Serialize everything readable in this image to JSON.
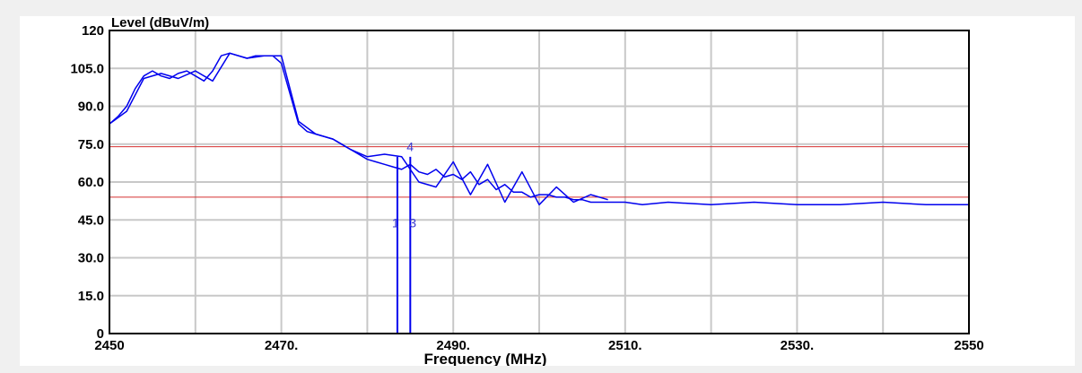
{
  "chart_data": {
    "type": "line",
    "title": "",
    "xlabel": "Frequency (MHz)",
    "ylabel": "Level (dBuV/m)",
    "xlim": [
      2450,
      2550
    ],
    "ylim": [
      0,
      120
    ],
    "x_ticks": [
      {
        "value": 2450,
        "label": "2450"
      },
      {
        "value": 2470,
        "label": "2470."
      },
      {
        "value": 2490,
        "label": "2490."
      },
      {
        "value": 2510,
        "label": "2510."
      },
      {
        "value": 2530,
        "label": "2530."
      },
      {
        "value": 2550,
        "label": "2550"
      }
    ],
    "x_gridlines": [
      2460,
      2470,
      2480,
      2490,
      2500,
      2510,
      2520,
      2530,
      2540,
      2550
    ],
    "y_ticks": [
      {
        "value": 0,
        "label": "0"
      },
      {
        "value": 15,
        "label": "15.0"
      },
      {
        "value": 30,
        "label": "30.0"
      },
      {
        "value": 45,
        "label": "45.0"
      },
      {
        "value": 60,
        "label": "60.0"
      },
      {
        "value": 75,
        "label": "75.0"
      },
      {
        "value": 90,
        "label": "90.0"
      },
      {
        "value": 105,
        "label": "105.0"
      },
      {
        "value": 120,
        "label": "120"
      }
    ],
    "grid": true,
    "limit_lines": [
      {
        "y": 74,
        "color": "#d43030"
      },
      {
        "y": 54,
        "color": "#d43030"
      }
    ],
    "series": [
      {
        "color": "#0000ee",
        "x": [
          2450,
          2451,
          2452,
          2453,
          2454,
          2455,
          2456,
          2457,
          2458,
          2459,
          2460,
          2461,
          2462,
          2463,
          2464,
          2465,
          2466,
          2467,
          2468,
          2469,
          2470,
          2471,
          2472,
          2473,
          2474,
          2475,
          2476,
          2477,
          2478,
          2479,
          2480,
          2481,
          2482,
          2483,
          2484,
          2485,
          2486,
          2487,
          2488,
          2489,
          2490,
          2491,
          2492,
          2493,
          2494,
          2495,
          2496,
          2497,
          2498,
          2499,
          2500,
          2501,
          2502,
          2503,
          2504,
          2505,
          2506,
          2507,
          2508,
          2509,
          2510,
          2512,
          2515,
          2520,
          2525,
          2530,
          2535,
          2540,
          2545,
          2550
        ],
        "y": [
          83,
          86,
          90,
          97,
          102,
          104,
          102,
          101,
          103,
          104,
          102,
          100,
          104,
          110,
          111,
          110,
          109,
          110,
          110,
          110,
          107,
          95,
          83,
          80,
          79,
          78,
          77,
          75,
          73,
          71,
          69,
          68,
          67,
          66,
          65,
          67,
          64,
          63,
          65,
          62,
          63,
          61,
          64,
          59,
          61,
          57,
          59,
          56,
          56,
          54,
          55,
          55,
          54,
          54,
          53,
          53,
          52,
          52,
          52,
          52,
          52,
          51,
          52,
          51,
          52,
          51,
          51,
          52,
          51,
          51
        ]
      },
      {
        "color": "#0000ee",
        "x": [
          2450,
          2452,
          2454,
          2456,
          2458,
          2460,
          2462,
          2464,
          2466,
          2468,
          2470,
          2472,
          2474,
          2476,
          2478,
          2480,
          2482,
          2484,
          2486,
          2488,
          2490,
          2492,
          2494,
          2496,
          2498,
          2500,
          2502,
          2504,
          2506,
          2508
        ],
        "y": [
          83,
          88,
          101,
          103,
          101,
          104,
          100,
          111,
          109,
          110,
          110,
          84,
          79,
          77,
          73,
          70,
          71,
          70,
          60,
          58,
          68,
          55,
          67,
          52,
          64,
          51,
          58,
          52,
          55,
          53
        ]
      }
    ],
    "markers": [
      {
        "label": "1",
        "x": 2483.5,
        "y": 70
      },
      {
        "label": "3",
        "x": 2485,
        "y": 70
      },
      {
        "label": "4",
        "x": 2485,
        "y": 74
      }
    ]
  }
}
